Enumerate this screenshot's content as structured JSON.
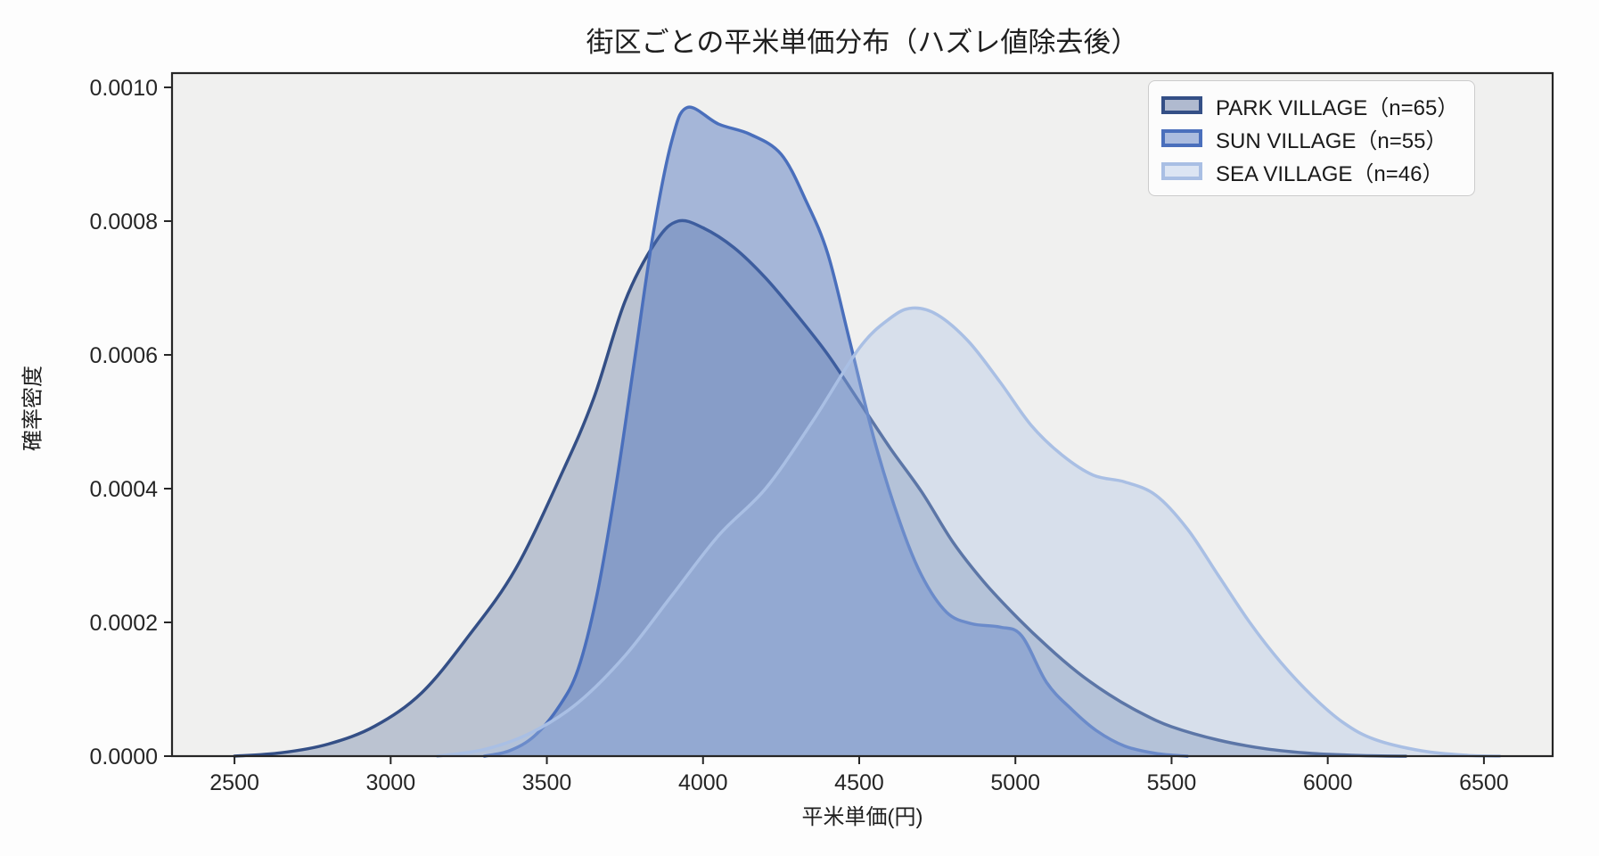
{
  "chart_data": {
    "type": "area",
    "subtype": "kde-density",
    "title": "街区ごとの平米単価分布（ハズレ値除去後）",
    "xlabel": "平米単価(円)",
    "ylabel": "確率密度",
    "xlim": [
      2300,
      6720
    ],
    "ylim": [
      0,
      0.0010213
    ],
    "x_ticks": [
      2500,
      3000,
      3500,
      4000,
      4500,
      5000,
      5500,
      6000,
      6500
    ],
    "x_tick_labels": [
      "2500",
      "3000",
      "3500",
      "4000",
      "4500",
      "5000",
      "5500",
      "6000",
      "6500"
    ],
    "y_ticks": [
      0.0,
      0.0002,
      0.0004,
      0.0006,
      0.0008,
      0.001
    ],
    "y_tick_labels": [
      "0.0000",
      "0.0002",
      "0.0004",
      "0.0006",
      "0.0008",
      "0.0010"
    ],
    "grid": false,
    "legend_position": "upper right",
    "colors": {
      "plot_background": "#f0f0ef",
      "figure_background": "#fdfdfd",
      "spine": "#262626",
      "text": "#1f1f1f",
      "legend_border": "#cccccc"
    },
    "series": [
      {
        "name": "PARK VILLAGE（n=65）",
        "n": 65,
        "line_color": "#344f86",
        "fill_opacity": 0.28,
        "peak": {
          "x": 3920,
          "density": 0.0008
        },
        "points": [
          [
            2500,
            0
          ],
          [
            2650,
            5e-06
          ],
          [
            2800,
            1.8e-05
          ],
          [
            2950,
            4.5e-05
          ],
          [
            3100,
            9.5e-05
          ],
          [
            3250,
            0.00018
          ],
          [
            3400,
            0.00028
          ],
          [
            3550,
            0.000425
          ],
          [
            3650,
            0.000535
          ],
          [
            3750,
            0.00068
          ],
          [
            3850,
            0.00077
          ],
          [
            3920,
            0.0008
          ],
          [
            4000,
            0.00079
          ],
          [
            4100,
            0.00076
          ],
          [
            4200,
            0.000715
          ],
          [
            4300,
            0.00066
          ],
          [
            4400,
            0.0006
          ],
          [
            4500,
            0.00053
          ],
          [
            4600,
            0.00046
          ],
          [
            4700,
            0.000395
          ],
          [
            4800,
            0.00032
          ],
          [
            4900,
            0.00026
          ],
          [
            5000,
            0.00021
          ],
          [
            5100,
            0.000165
          ],
          [
            5200,
            0.000125
          ],
          [
            5300,
            9.2e-05
          ],
          [
            5400,
            6.5e-05
          ],
          [
            5500,
            4.4e-05
          ],
          [
            5650,
            2.4e-05
          ],
          [
            5800,
            1.1e-05
          ],
          [
            5950,
            4e-06
          ],
          [
            6100,
            1e-06
          ],
          [
            6250,
            0
          ]
        ]
      },
      {
        "name": "SUN VILLAGE（n=55）",
        "n": 55,
        "line_color": "#4a6fbc",
        "fill_opacity": 0.45,
        "peak": {
          "x": 3950,
          "density": 0.00097
        },
        "points": [
          [
            3300,
            0
          ],
          [
            3380,
            8e-06
          ],
          [
            3460,
            3e-05
          ],
          [
            3540,
            7.5e-05
          ],
          [
            3600,
            0.00013
          ],
          [
            3660,
            0.00024
          ],
          [
            3720,
            0.0004
          ],
          [
            3780,
            0.00059
          ],
          [
            3840,
            0.00078
          ],
          [
            3900,
            0.00092
          ],
          [
            3950,
            0.00097
          ],
          [
            4050,
            0.000945
          ],
          [
            4150,
            0.00093
          ],
          [
            4250,
            0.0009
          ],
          [
            4330,
            0.00083
          ],
          [
            4400,
            0.00075
          ],
          [
            4470,
            0.00062
          ],
          [
            4550,
            0.00047
          ],
          [
            4630,
            0.00035
          ],
          [
            4700,
            0.00027
          ],
          [
            4780,
            0.000215
          ],
          [
            4860,
            0.000198
          ],
          [
            4950,
            0.000193
          ],
          [
            5020,
            0.00018
          ],
          [
            5100,
            0.00011
          ],
          [
            5180,
            7e-05
          ],
          [
            5260,
            3.8e-05
          ],
          [
            5350,
            1.5e-05
          ],
          [
            5450,
            4e-06
          ],
          [
            5550,
            0
          ]
        ]
      },
      {
        "name": "SEA VILLAGE（n=46）",
        "n": 46,
        "line_color": "#a9bfe4",
        "fill_opacity": 0.35,
        "peak": {
          "x": 4670,
          "density": 0.00067
        },
        "points": [
          [
            3150,
            0
          ],
          [
            3300,
            1e-05
          ],
          [
            3450,
            3.5e-05
          ],
          [
            3600,
            8e-05
          ],
          [
            3750,
            0.00015
          ],
          [
            3900,
            0.00024
          ],
          [
            4050,
            0.00033
          ],
          [
            4200,
            0.0004
          ],
          [
            4350,
            0.0005
          ],
          [
            4500,
            0.00061
          ],
          [
            4600,
            0.000655
          ],
          [
            4670,
            0.00067
          ],
          [
            4750,
            0.00066
          ],
          [
            4850,
            0.00062
          ],
          [
            4950,
            0.00056
          ],
          [
            5050,
            0.000495
          ],
          [
            5150,
            0.00045
          ],
          [
            5250,
            0.00042
          ],
          [
            5350,
            0.00041
          ],
          [
            5450,
            0.00039
          ],
          [
            5550,
            0.00034
          ],
          [
            5650,
            0.00027
          ],
          [
            5750,
            0.0002
          ],
          [
            5850,
            0.00014
          ],
          [
            5950,
            9e-05
          ],
          [
            6050,
            5e-05
          ],
          [
            6150,
            2.5e-05
          ],
          [
            6300,
            8e-06
          ],
          [
            6450,
            1e-06
          ],
          [
            6550,
            0
          ]
        ]
      }
    ]
  }
}
